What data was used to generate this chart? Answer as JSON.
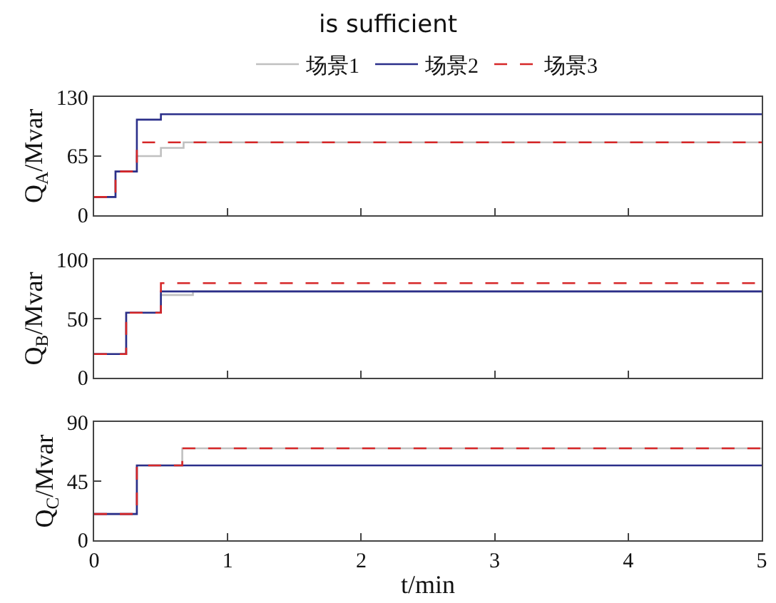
{
  "chart_data": [
    {
      "type": "step",
      "title": "is sufficient",
      "ylabel": "Q$_{A}$/Mvar",
      "xlim": [
        0,
        5
      ],
      "xticks": [
        0,
        1,
        2,
        3,
        4,
        5
      ],
      "ylim": [
        0,
        130
      ],
      "yticks": [
        0,
        65,
        130
      ],
      "tick_labels": "y",
      "legend": "top",
      "series": [
        {
          "name": "场景1",
          "color": "#c0c0c0",
          "line_style": "solid",
          "x": [
            0,
            0.16,
            0.32,
            0.5,
            0.67,
            5
          ],
          "values": [
            20,
            48,
            65,
            74,
            80,
            80
          ]
        },
        {
          "name": "场景2",
          "color": "#2b2f8a",
          "line_style": "solid",
          "x": [
            0,
            0.16,
            0.32,
            0.5,
            5
          ],
          "values": [
            20,
            48,
            105,
            111,
            111
          ]
        },
        {
          "name": "场景3",
          "color": "#d62728",
          "line_style": "dashed",
          "x": [
            0,
            0.16,
            0.32,
            5
          ],
          "values": [
            20,
            48,
            80,
            80
          ]
        }
      ]
    },
    {
      "type": "step",
      "ylabel": "Q$_{B}$/Mvar",
      "xlim": [
        0,
        5
      ],
      "xticks": [
        0,
        1,
        2,
        3,
        4,
        5
      ],
      "ylim": [
        0,
        100
      ],
      "yticks": [
        0,
        50,
        100
      ],
      "tick_labels": "y",
      "series": [
        {
          "color": "#c0c0c0",
          "line_style": "solid",
          "x": [
            0,
            0.24,
            0.5,
            0.74,
            5
          ],
          "values": [
            20,
            55,
            70,
            73,
            73
          ]
        },
        {
          "color": "#2b2f8a",
          "line_style": "solid",
          "x": [
            0,
            0.24,
            0.5,
            5
          ],
          "values": [
            20,
            55,
            73,
            73
          ]
        },
        {
          "color": "#d62728",
          "line_style": "dashed",
          "x": [
            0,
            0.24,
            0.5,
            5
          ],
          "values": [
            20,
            55,
            80,
            80
          ]
        }
      ]
    },
    {
      "type": "step",
      "xlabel": "t/min",
      "ylabel": "Q$_{C}$/Mvar",
      "xlim": [
        0,
        5
      ],
      "xticks": [
        0,
        1,
        2,
        3,
        4,
        5
      ],
      "ylim": [
        0,
        90
      ],
      "yticks": [
        0,
        45,
        90
      ],
      "series": [
        {
          "color": "#c0c0c0",
          "line_style": "solid",
          "x": [
            0,
            0.32,
            0.66,
            5
          ],
          "values": [
            20,
            57,
            70,
            70
          ]
        },
        {
          "color": "#2b2f8a",
          "line_style": "solid",
          "x": [
            0,
            0.32,
            5
          ],
          "values": [
            20,
            57,
            57
          ]
        },
        {
          "color": "#d62728",
          "line_style": "dashed",
          "x": [
            0,
            0.32,
            0.66,
            5
          ],
          "values": [
            20,
            57,
            70,
            70
          ]
        }
      ]
    }
  ]
}
